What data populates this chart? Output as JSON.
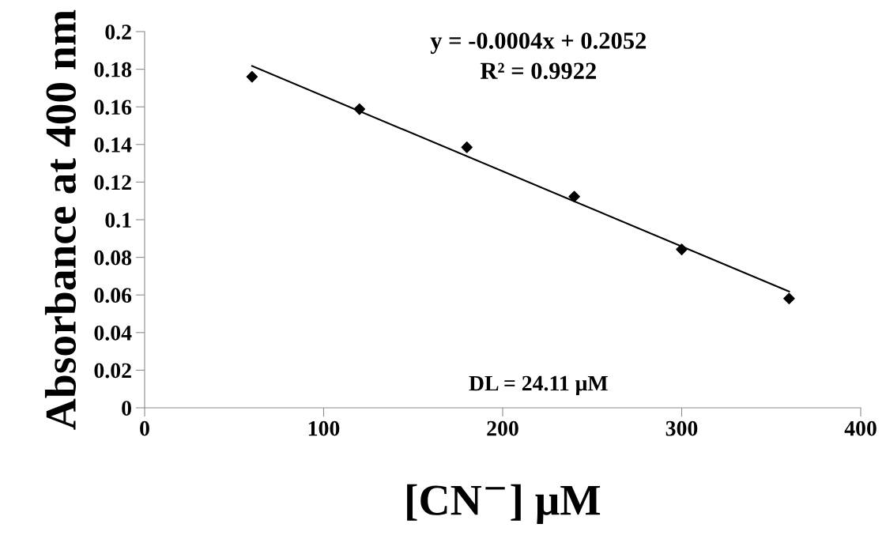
{
  "chart_data": {
    "type": "scatter",
    "xlabel": "[CN$^{−}$] μM",
    "ylabel": "Absorbance at 400 nm",
    "xlim": [
      0,
      400
    ],
    "xticks": [
      0,
      100,
      200,
      300,
      400
    ],
    "ylim": [
      0,
      0.2
    ],
    "yticks": [
      0,
      0.02,
      0.04,
      0.06,
      0.08,
      0.1,
      0.12,
      0.14,
      0.16,
      0.18,
      0.2
    ],
    "grid": false,
    "legend": false,
    "series": [
      {
        "color": "#000000",
        "marker": "diamond",
        "x": [
          60,
          120,
          180,
          240,
          300,
          360
        ],
        "values": [
          0.176,
          0.1588,
          0.1385,
          0.1123,
          0.0842,
          0.0581
        ]
      },
      {
        "type": "line",
        "color": "#000000",
        "marker": "none",
        "line_style": "solid",
        "x": [
          60,
          360
        ],
        "values": [
          0.1817,
          0.0618
        ]
      }
    ],
    "annotations": [
      "y = -0.0004x + 0.2052",
      "R² = 0.9922",
      "DL = 24.11 μM"
    ]
  }
}
